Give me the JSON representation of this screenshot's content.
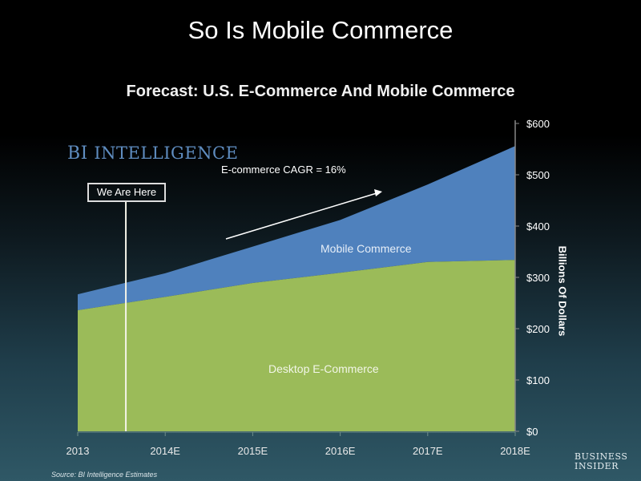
{
  "header": {
    "title": "So Is Mobile Commerce",
    "subtitle": "Forecast: U.S. E-Commerce And Mobile Commerce"
  },
  "branding": {
    "bi_intelligence": [
      "BI",
      "Intelligence"
    ],
    "business_insider": [
      "Business",
      "Insider"
    ]
  },
  "annotations": {
    "cagr": "E-commerce CAGR = 16%",
    "we_are_here": "We Are Here",
    "mobile_label": "Mobile Commerce",
    "desktop_label": "Desktop E-Commerce",
    "source": "Source: BI Intelligence Estimates"
  },
  "colors": {
    "mobile": "#4f81bd",
    "desktop": "#9bbb59",
    "axis": "#888888"
  },
  "chart_data": {
    "type": "area",
    "stacked": true,
    "title": "Forecast: U.S. E-Commerce And Mobile Commerce",
    "xlabel": "",
    "ylabel": "Billions Of Dollars",
    "categories": [
      "2013",
      "2014E",
      "2015E",
      "2016E",
      "2017E",
      "2018E"
    ],
    "series": [
      {
        "name": "Desktop E-Commerce",
        "values": [
          236,
          262,
          289,
          309,
          330,
          334
        ]
      },
      {
        "name": "Mobile Commerce",
        "values": [
          31,
          46,
          71,
          103,
          151,
          222
        ]
      }
    ],
    "totals": [
      267,
      308,
      360,
      412,
      481,
      556
    ],
    "ylim": [
      0,
      600
    ],
    "yticks": [
      0,
      100,
      200,
      300,
      400,
      500,
      600
    ],
    "ytick_labels": [
      "$0",
      "$100",
      "$200",
      "$300",
      "$400",
      "$500",
      "$600"
    ],
    "y_axis_side": "right",
    "grid": false,
    "marker_we_are_here": 0.55
  }
}
